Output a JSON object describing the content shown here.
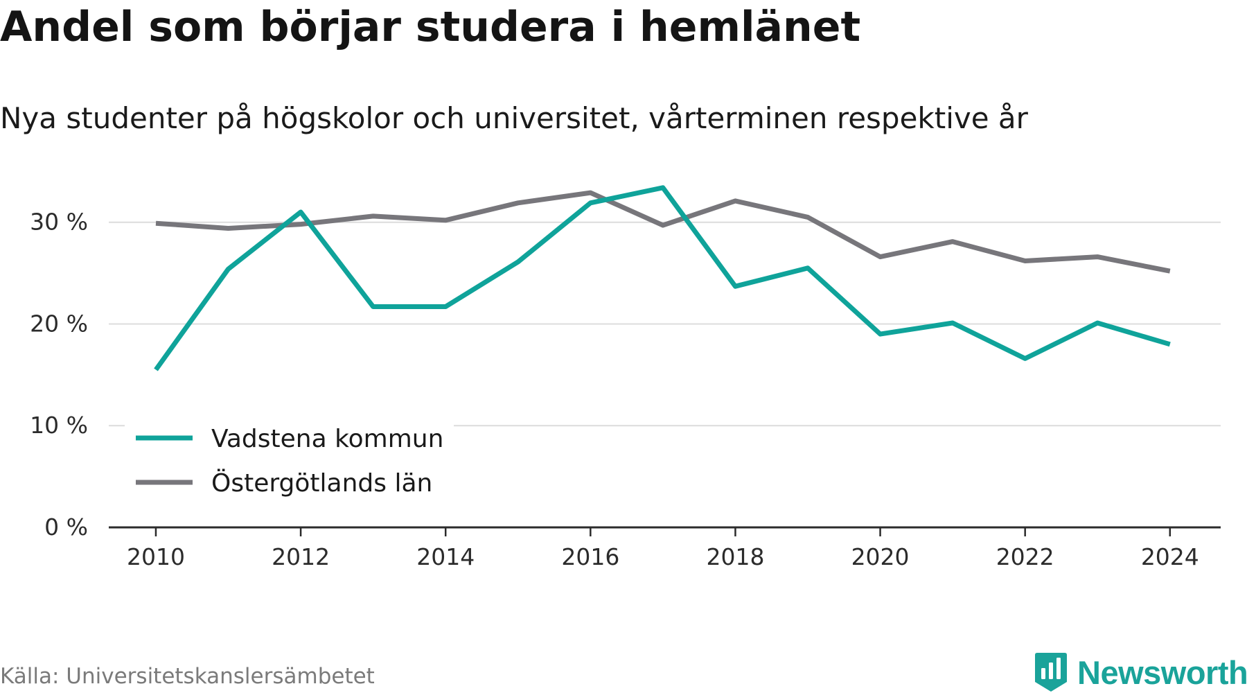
{
  "title": "Andel som börjar studera i hemlänet",
  "subtitle": "Nya studenter på högskolor och universitet, vårterminen respektive år",
  "source": "Källa: Universitetskanslersämbetet",
  "brand": {
    "name": "Newsworthy",
    "color": "#1aa39a",
    "icon": "bar-chart-badge-icon"
  },
  "chart_data": {
    "type": "line",
    "x": [
      2010,
      2011,
      2012,
      2013,
      2014,
      2015,
      2016,
      2017,
      2018,
      2019,
      2020,
      2021,
      2022,
      2023,
      2024
    ],
    "xticks": [
      2010,
      2012,
      2014,
      2016,
      2018,
      2020,
      2022,
      2024
    ],
    "xtick_labels": [
      "2010",
      "2012",
      "2014",
      "2016",
      "2018",
      "2020",
      "2022",
      "2024"
    ],
    "xlim": [
      2009.35,
      2024.7
    ],
    "ylim": [
      0,
      34
    ],
    "yticks": [
      0,
      10,
      20,
      30
    ],
    "ytick_labels": [
      "0 %",
      "10 %",
      "20 %",
      "30 %"
    ],
    "grid": true,
    "legend_position": "bottom-left",
    "series": [
      {
        "name": "Vadstena kommun",
        "color": "#0fa39a",
        "values": [
          15.5,
          25.4,
          31.0,
          21.7,
          21.7,
          26.1,
          31.9,
          33.4,
          23.7,
          25.5,
          19.0,
          20.1,
          16.6,
          20.1,
          18.0
        ]
      },
      {
        "name": "Östergötlands län",
        "color": "#77767b",
        "values": [
          29.9,
          29.4,
          29.8,
          30.6,
          30.2,
          31.9,
          32.9,
          29.7,
          32.1,
          30.5,
          26.6,
          28.1,
          26.2,
          26.6,
          25.2
        ]
      }
    ]
  }
}
